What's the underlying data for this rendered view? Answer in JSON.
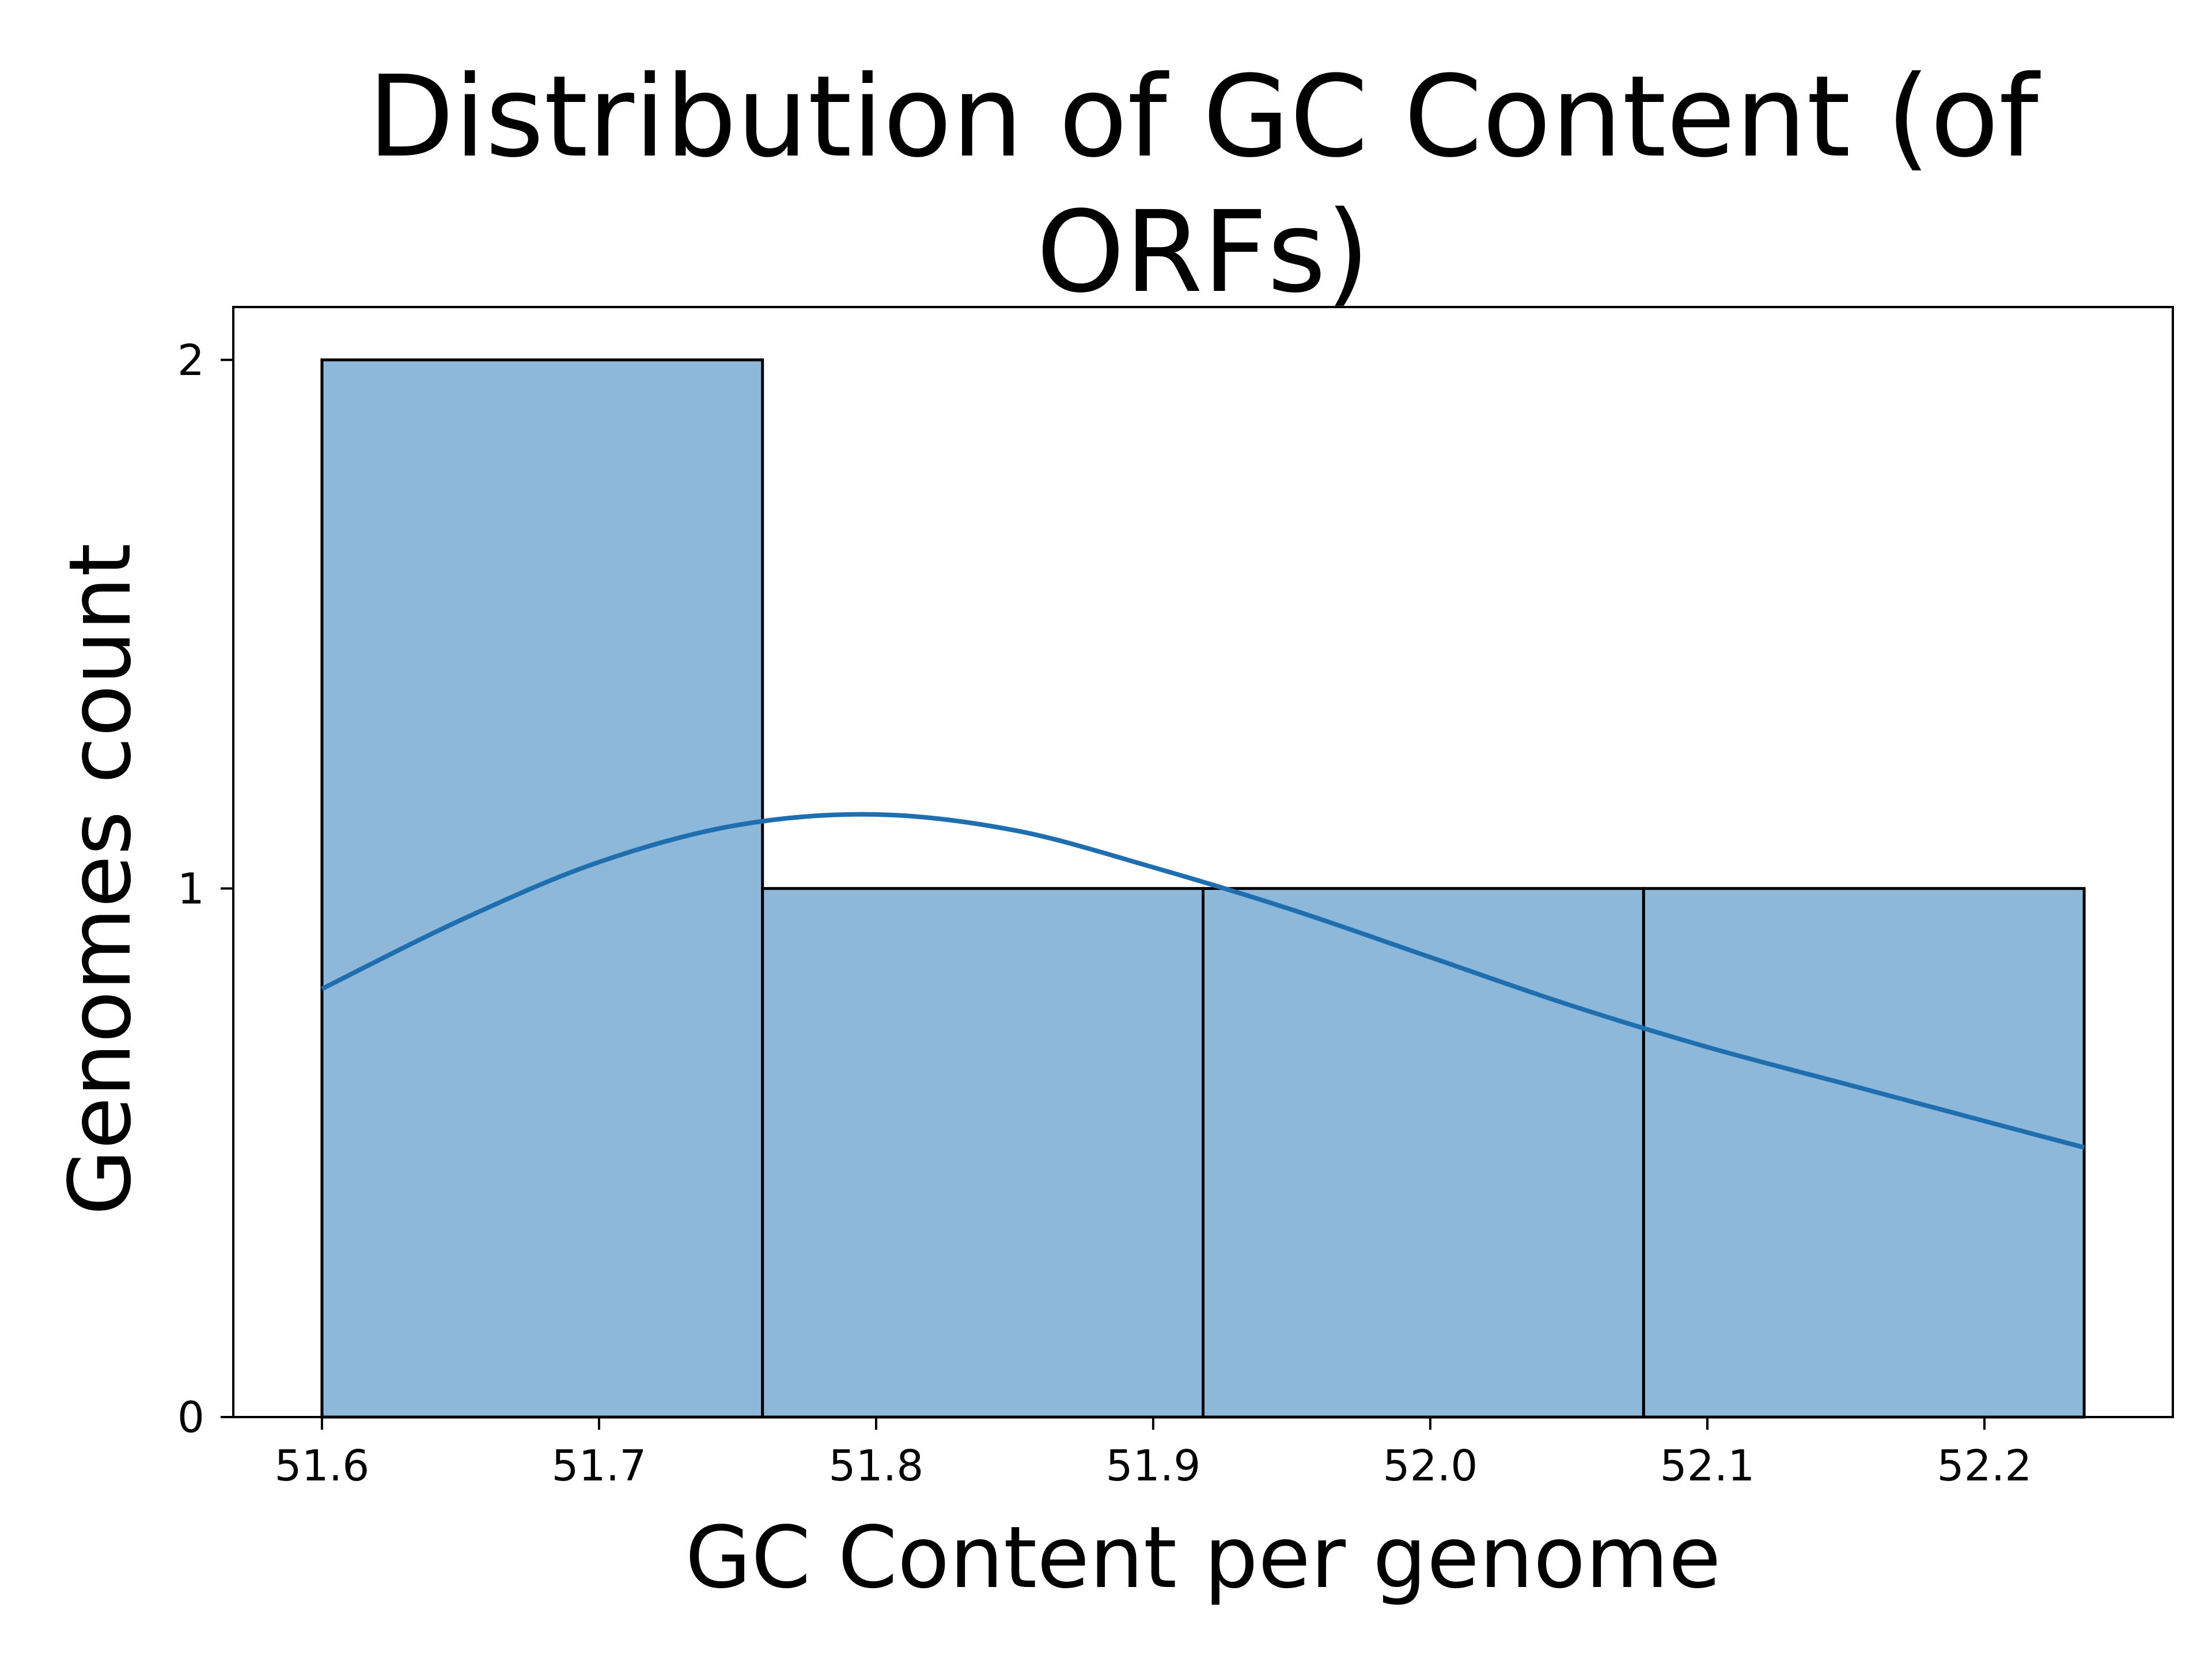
{
  "chart_data": {
    "type": "bar",
    "subtype": "histogram-with-kde",
    "title_lines": [
      "Distribution of GC Content (of",
      "ORFs)"
    ],
    "xlabel": "GC Content per genome",
    "ylabel": "Genomes count",
    "xlim": [
      51.568,
      52.268
    ],
    "ylim": [
      0,
      2.1
    ],
    "xticks": [
      51.6,
      51.7,
      51.8,
      51.9,
      52.0,
      52.1,
      52.2
    ],
    "xtick_labels": [
      "51.6",
      "51.7",
      "51.8",
      "51.9",
      "52.0",
      "52.1",
      "52.2"
    ],
    "yticks": [
      0,
      1,
      2
    ],
    "ytick_labels": [
      "0",
      "1",
      "2"
    ],
    "bins": [
      {
        "x0": 51.6,
        "x1": 51.759,
        "count": 2
      },
      {
        "x0": 51.759,
        "x1": 51.918,
        "count": 1
      },
      {
        "x0": 51.918,
        "x1": 52.077,
        "count": 1
      },
      {
        "x0": 52.077,
        "x1": 52.236,
        "count": 1
      }
    ],
    "kde": {
      "x": [
        51.6,
        51.65,
        51.7,
        51.75,
        51.8,
        51.85,
        51.9,
        51.95,
        52.0,
        52.05,
        52.1,
        52.15,
        52.2,
        52.236
      ],
      "y": [
        0.81,
        0.94,
        1.05,
        1.12,
        1.14,
        1.11,
        1.04,
        0.96,
        0.87,
        0.78,
        0.7,
        0.63,
        0.56,
        0.51
      ]
    },
    "grid": false,
    "legend": false,
    "colors": {
      "bar_fill": "#8db8d9",
      "bar_edge": "#000000",
      "kde_line": "#1f6fb0"
    }
  }
}
